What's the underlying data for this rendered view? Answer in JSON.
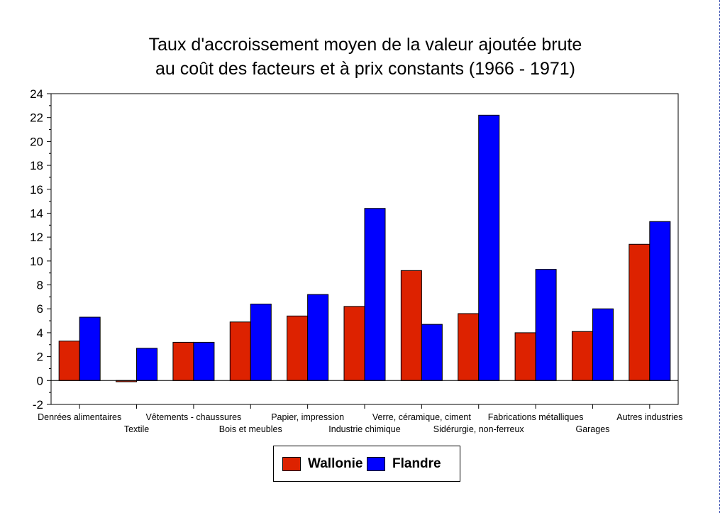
{
  "chart_data": {
    "type": "bar",
    "title": "Taux d'accroissement moyen de la valeur ajoutée brute",
    "subtitle": "au coût des facteurs et à prix constants (1966 - 1971)",
    "xlabel": "",
    "ylabel": "",
    "ylim": [
      -2,
      24
    ],
    "yticks": [
      -2,
      0,
      2,
      4,
      6,
      8,
      10,
      12,
      14,
      16,
      18,
      20,
      22,
      24
    ],
    "grid": false,
    "legend_position": "bottom-center",
    "categories": [
      "Denrées alimentaires",
      "Textile",
      "Vêtements - chaussures",
      "Bois et meubles",
      "Papier, impression",
      "Industrie chimique",
      "Verre, céramique, ciment",
      "Sidérurgie, non-ferreux",
      "Fabrications métalliques",
      "Garages",
      "Autres industries"
    ],
    "series": [
      {
        "name": "Wallonie",
        "color": "#dd2200",
        "values": [
          3.3,
          -0.1,
          3.2,
          4.9,
          5.4,
          6.2,
          9.2,
          5.6,
          4.0,
          4.1,
          11.4
        ]
      },
      {
        "name": "Flandre",
        "color": "#0000ff",
        "values": [
          5.3,
          2.7,
          3.2,
          6.4,
          7.2,
          14.4,
          4.7,
          22.2,
          9.3,
          6.0,
          13.3
        ]
      }
    ]
  }
}
